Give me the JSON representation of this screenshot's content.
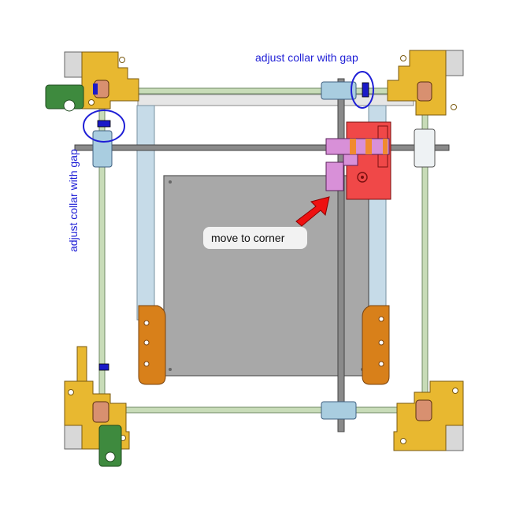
{
  "annotations": {
    "top_collar_label": "adjust collar with gap",
    "side_collar_label": "adjust collar with gap",
    "move_label": "move to corner"
  },
  "colors": {
    "rod": "#c8dcb8",
    "rod_edge": "#6f8a63",
    "corner_bracket": "#e8b830",
    "bed_clip": "#d8801a",
    "bed": "#a8a8a8",
    "bearing_block": "#a9cde0",
    "carriage_red": "#f04848",
    "carriage_pink": "#d890d8",
    "callout": "#1f1fd6",
    "arrow": "#ee1111"
  },
  "icons": [
    "red-arrow-icon",
    "collar-highlight-circle-icon"
  ]
}
